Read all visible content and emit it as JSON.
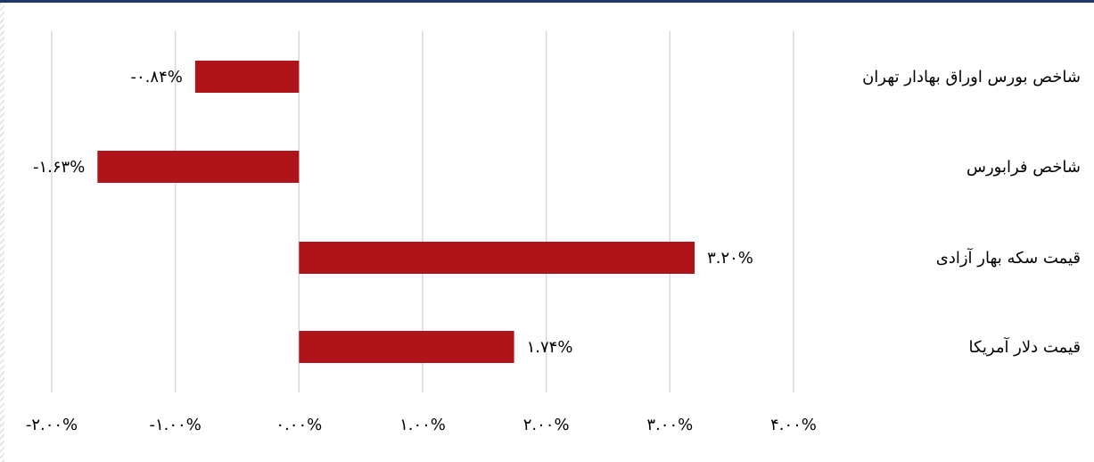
{
  "chart_data": {
    "type": "bar",
    "orientation": "horizontal",
    "categories": [
      "شاخص بورس اوراق بهادار تهران",
      "شاخص فرابورس",
      "قیمت سکه بهار آزادی",
      "قیمت دلار آمریکا"
    ],
    "values": [
      -0.84,
      -1.63,
      3.2,
      1.74
    ],
    "data_labels": [
      "-۰.۸۴%",
      "-۱.۶۳%",
      "۳.۲۰%",
      "۱.۷۴%"
    ],
    "x_ticks": [
      -2,
      -1,
      0,
      1,
      2,
      3,
      4
    ],
    "x_tick_labels": [
      "-۲.۰۰%",
      "-۱.۰۰%",
      "۰.۰۰%",
      "۱.۰۰%",
      "۲.۰۰%",
      "۳.۰۰%",
      "۴.۰۰%"
    ],
    "xlim": [
      -2,
      4
    ],
    "grid": true,
    "legend": "none",
    "title": "",
    "xlabel": "",
    "ylabel": "",
    "colors": {
      "bar": "#b0141b",
      "grid": "#d9d9d9",
      "top_border": "#1f3a68"
    }
  }
}
